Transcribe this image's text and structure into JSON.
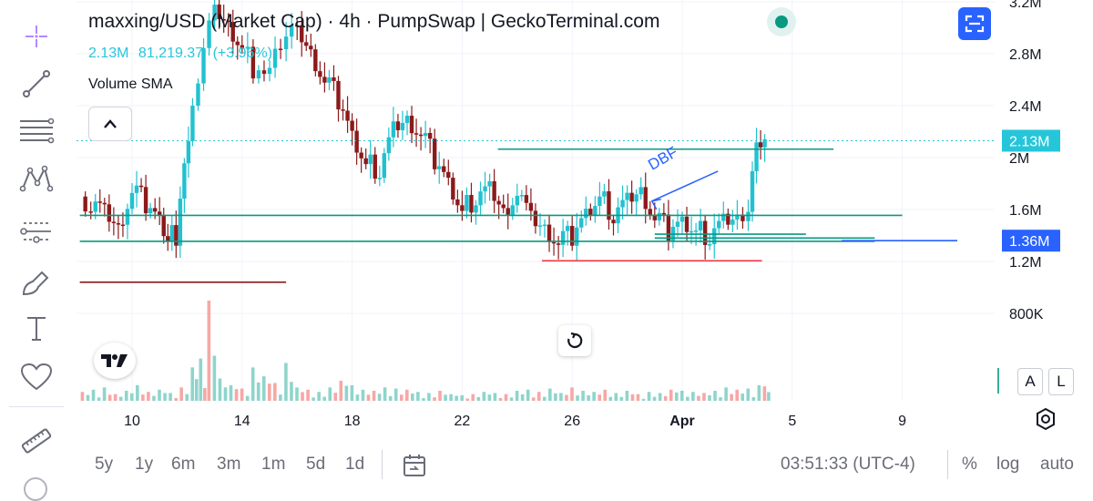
{
  "header": {
    "title": "maxxing/USD (Market Cap) · 4h · PumpSwap | GeckoTerminal.com",
    "last_price": "2.13M",
    "change": "81,219.37",
    "change_pct": "(+3.96%)",
    "volume_indicator": "Volume SMA"
  },
  "colors": {
    "up": "#26a69a",
    "down": "#ef5350",
    "up_body": "#22c1d0",
    "down_body": "#8b1a1a",
    "accent": "#2962ff",
    "price_line": "#26c6da"
  },
  "toolbar": {
    "tools": [
      "crosshair-icon",
      "trend-line-icon",
      "fib-retracement-icon",
      "pattern-icon",
      "forecast-icon",
      "brush-icon",
      "text-icon",
      "favorite-heart-icon",
      "ruler-icon"
    ]
  },
  "chart_data": {
    "type": "candlestick",
    "title": "maxxing/USD (Market Cap) · 4h · PumpSwap | GeckoTerminal.com",
    "x_tick_labels": [
      "10",
      "14",
      "18",
      "22",
      "26",
      "Apr",
      "5",
      "9"
    ],
    "y_tick_labels": [
      "2.8M",
      "2.4M",
      "2M",
      "1.6M",
      "1.2M",
      "800K"
    ],
    "y_tick_values": [
      2800000,
      2400000,
      2000000,
      1600000,
      1200000,
      800000
    ],
    "ylim": [
      740000,
      3280000
    ],
    "price_labels": [
      {
        "text": "2.13M",
        "value": 2130000,
        "color": "#26c6da"
      },
      {
        "text": "1.36M",
        "value": 1360000,
        "color": "#2962ff"
      }
    ],
    "horizontal_lines": [
      {
        "value": 2065000,
        "from_day": 23.3,
        "to_day": 35.5,
        "color": "#089981"
      },
      {
        "value": 1555000,
        "from_day": 8.1,
        "to_day": 38.0,
        "color": "#089981"
      },
      {
        "value": 1410000,
        "from_day": 29.0,
        "to_day": 34.5,
        "color": "#089981"
      },
      {
        "value": 1380000,
        "from_day": 29.0,
        "to_day": 37.0,
        "color": "#089981"
      },
      {
        "value": 1355000,
        "from_day": 8.1,
        "to_day": 37.0,
        "color": "#089981"
      },
      {
        "value": 1360000,
        "from_day": 35.8,
        "to_day": 40.0,
        "color": "#2962ff"
      },
      {
        "value": 1205000,
        "from_day": 24.9,
        "to_day": 32.9,
        "color": "#f23645"
      },
      {
        "value": 1040000,
        "from_day": 8.1,
        "to_day": 15.6,
        "color": "#8b1a1a"
      }
    ],
    "annotations": [
      {
        "text": "DBF",
        "day": 28.9,
        "value": 1900000,
        "color": "#2962ff"
      }
    ],
    "arrow": {
      "from_day": 31.3,
      "from_value": 1895000,
      "to_day": 28.9,
      "to_value": 1665000,
      "color": "#2962ff"
    },
    "series": [
      {
        "name": "Market Cap",
        "kind": "close_path",
        "days": [
          8.1,
          8.5,
          9.0,
          9.5,
          10.0,
          10.5,
          11.0,
          11.3,
          11.6,
          11.9,
          12.2,
          12.6,
          13.0,
          13.5,
          14.0,
          14.4,
          14.8,
          15.2,
          15.6,
          16.0,
          16.5,
          17.0,
          17.5,
          18.0,
          18.5,
          19.0,
          19.5,
          20.0,
          20.5,
          21.0,
          21.5,
          22.0,
          22.5,
          23.0,
          23.5,
          24.0,
          24.5,
          25.0,
          25.5,
          26.0,
          26.5,
          27.0,
          27.5,
          28.0,
          28.5,
          29.0,
          29.5,
          30.0,
          30.5,
          31.0,
          31.5,
          32.0,
          32.4,
          32.7,
          33.0
        ],
        "values": [
          1700000,
          1650000,
          1550000,
          1450000,
          1750000,
          1650000,
          1500000,
          1380000,
          1400000,
          1900000,
          2400000,
          2900000,
          3100000,
          3000000,
          2850000,
          2700000,
          2600000,
          2850000,
          3000000,
          2950000,
          2800000,
          2600000,
          2450000,
          2150000,
          1950000,
          1900000,
          2200000,
          2300000,
          2200000,
          2000000,
          1800000,
          1600000,
          1700000,
          1750000,
          1600000,
          1750000,
          1500000,
          1450000,
          1350000,
          1400000,
          1550000,
          1700000,
          1550000,
          1650000,
          1750000,
          1550000,
          1450000,
          1500000,
          1450000,
          1400000,
          1500000,
          1550000,
          1650000,
          2050000,
          2130000
        ]
      },
      {
        "name": "Volume",
        "kind": "bars",
        "days": [
          8.2,
          8.6,
          9.0,
          9.4,
          9.8,
          10.2,
          10.6,
          11.0,
          11.4,
          11.8,
          12.2,
          12.5,
          12.8,
          13.2,
          13.6,
          14.0,
          14.4,
          14.8,
          15.2,
          15.6,
          16.0,
          16.4,
          16.8,
          17.2,
          17.6,
          18.0,
          18.4,
          18.8,
          19.2,
          19.6,
          20.0,
          20.4,
          20.8,
          21.2,
          21.6,
          22.0,
          22.4,
          22.8,
          23.2,
          23.6,
          24.0,
          24.4,
          24.8,
          25.2,
          25.6,
          26.0,
          26.4,
          26.8,
          27.2,
          27.6,
          28.0,
          28.4,
          28.8,
          29.2,
          29.6,
          30.0,
          30.4,
          30.8,
          31.2,
          31.6,
          32.0,
          32.4,
          32.8,
          33.0
        ],
        "values": [
          8,
          10,
          12,
          6,
          9,
          14,
          8,
          10,
          7,
          12,
          30,
          38,
          90,
          20,
          14,
          11,
          30,
          22,
          16,
          34,
          12,
          10,
          8,
          12,
          18,
          14,
          10,
          9,
          12,
          11,
          10,
          8,
          7,
          9,
          6,
          5,
          6,
          8,
          7,
          6,
          9,
          10,
          8,
          11,
          7,
          12,
          9,
          8,
          10,
          7,
          9,
          6,
          8,
          7,
          10,
          9,
          8,
          7,
          9,
          12,
          10,
          11,
          14,
          13
        ]
      }
    ]
  },
  "x_axis": {
    "settings_icon": "settings-icon"
  },
  "scale": {
    "auto_label": "A",
    "log_label": "L"
  },
  "ranges": [
    "5y",
    "1y",
    "6m",
    "3m",
    "1m",
    "5d",
    "1d"
  ],
  "bottom": {
    "time": "03:51:33 (UTC-4)",
    "percent": "%",
    "log": "log",
    "auto": "auto"
  }
}
